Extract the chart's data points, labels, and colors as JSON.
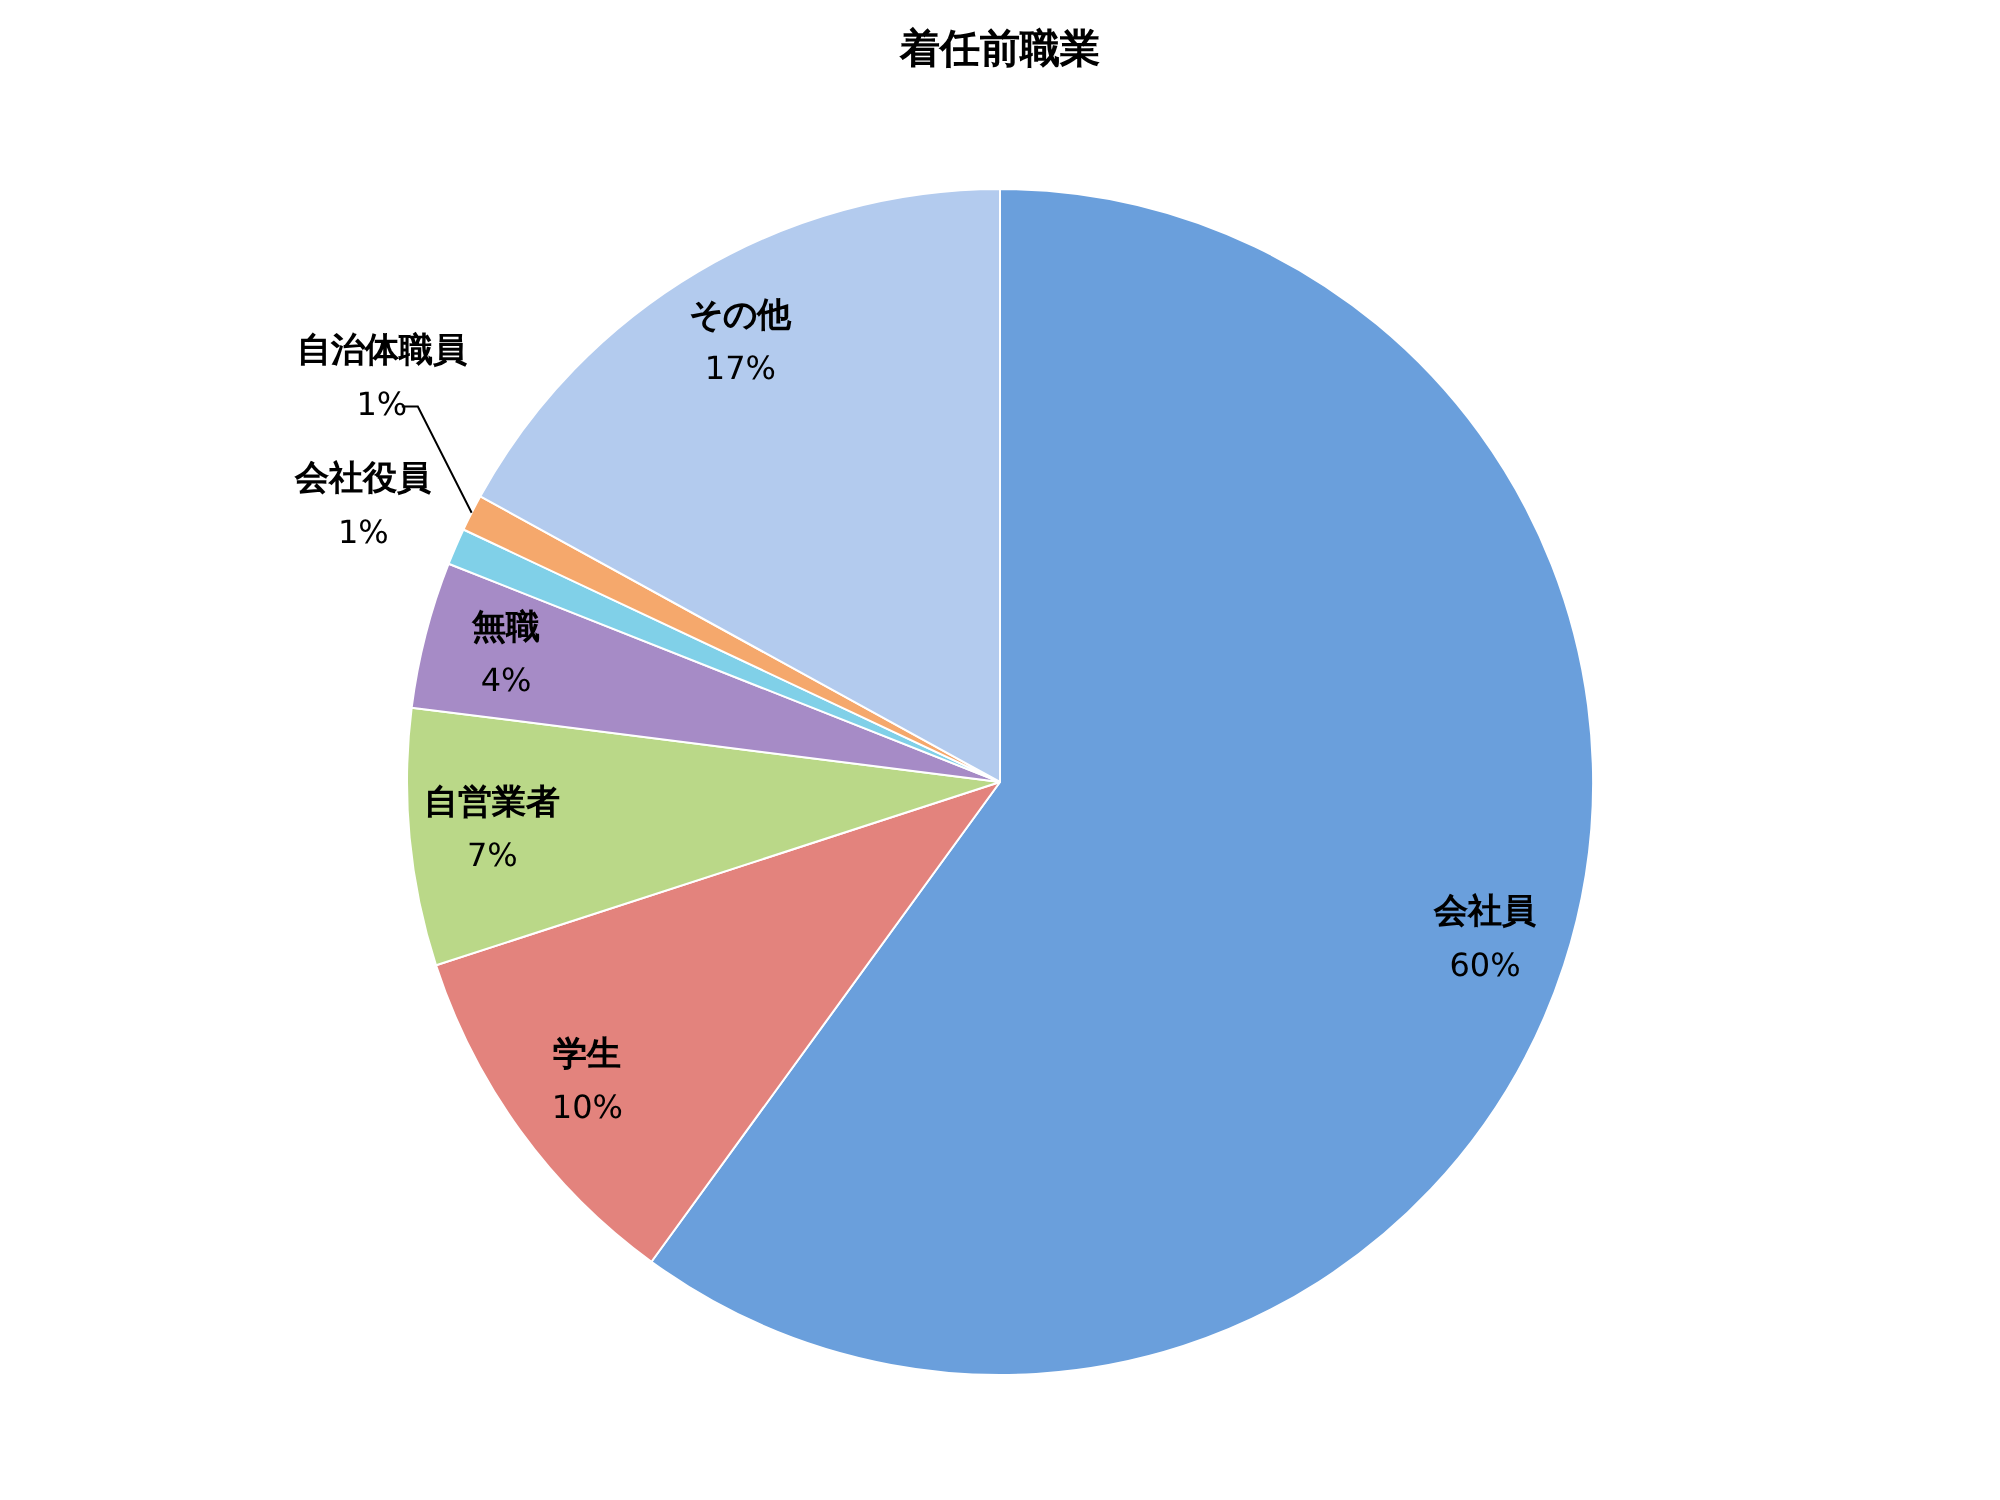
{
  "chart_data": {
    "type": "pie",
    "title": "着任前職業",
    "categories": [
      "会社員",
      "学生",
      "自営業者",
      "無職",
      "会社役員",
      "自治体職員",
      "その他"
    ],
    "values": [
      60,
      10,
      7,
      4,
      1,
      1,
      17
    ],
    "value_labels": [
      "60%",
      "10%",
      "7%",
      "4%",
      "1%",
      "1%",
      "17%"
    ],
    "colors": [
      "#6a9fdc",
      "#e3837d",
      "#bad888",
      "#a68bc6",
      "#80d0e8",
      "#f5a86c",
      "#b3cbee"
    ],
    "legend": false
  }
}
